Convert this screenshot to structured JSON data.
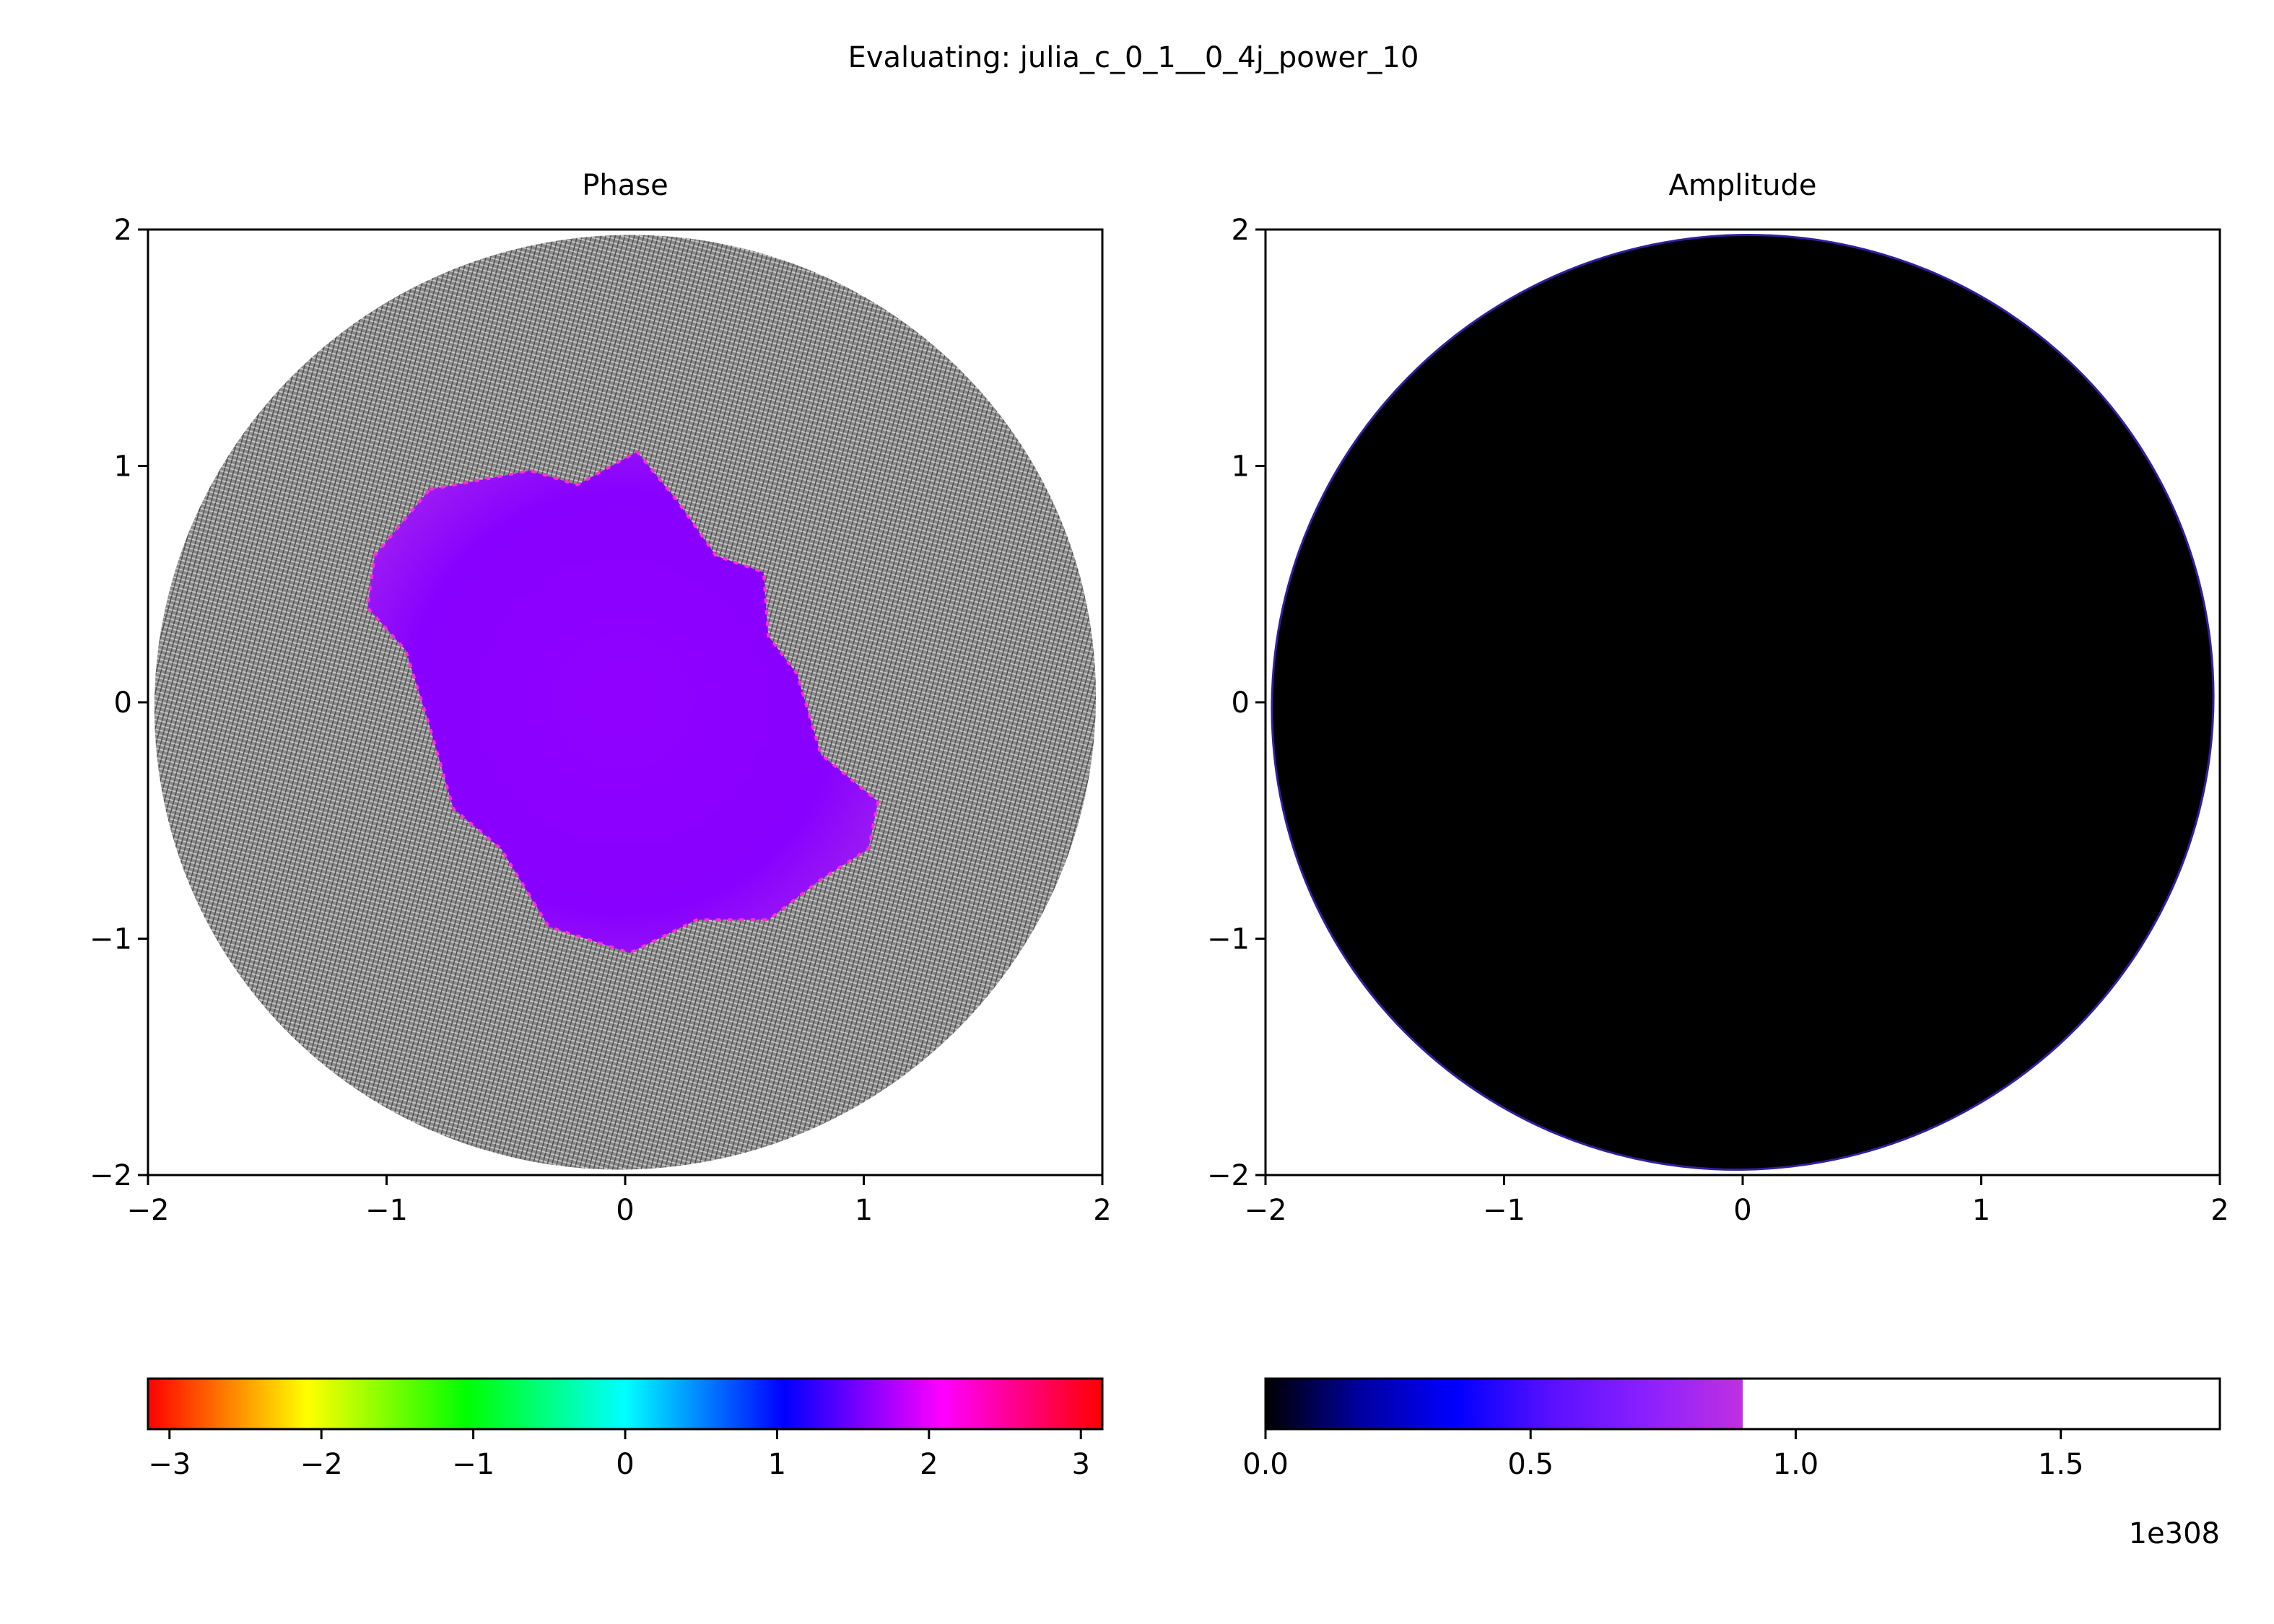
{
  "figure": {
    "suptitle": "Evaluating: julia_c_0_1__0_4j_power_10"
  },
  "colors": {
    "phase_gray": "#8a8a8a",
    "phase_interior": "#8c00ff",
    "phase_edge_pink": "#ff30d0",
    "amplitude_fill": "#000000",
    "amplitude_edge": "#3020a0"
  },
  "chart_data": [
    {
      "type": "heatmap",
      "title": "Phase",
      "xlabel": "",
      "ylabel": "",
      "xlim": [
        -2,
        2
      ],
      "ylim": [
        -2,
        2
      ],
      "xticks": [
        "−2",
        "−1",
        "0",
        "1",
        "2"
      ],
      "yticks": [
        "−2",
        "−1",
        "0",
        "1",
        "2"
      ],
      "xtick_values": [
        -2,
        -1,
        0,
        1,
        2
      ],
      "ytick_values": [
        -2,
        -1,
        0,
        1,
        2
      ],
      "colormap": "hsv",
      "colorbar": {
        "range": [
          -3.14159,
          3.14159
        ],
        "ticks": [
          "−3",
          "−2",
          "−1",
          "0",
          "1",
          "2",
          "3"
        ],
        "tick_values": [
          -3,
          -2,
          -1,
          0,
          1,
          2,
          3
        ],
        "stops": [
          "#ff0000",
          "#ffff00",
          "#00ff00",
          "#00ffff",
          "#0000ff",
          "#ff00ff",
          "#ff0000"
        ]
      },
      "escape_disc": {
        "semi_axis_x": 1.98,
        "semi_axis_y": 1.97,
        "tilt_deg": -30,
        "center": [
          0,
          0
        ]
      },
      "interior_polygon": [
        [
          -0.82,
          0.9
        ],
        [
          -0.4,
          0.98
        ],
        [
          -0.2,
          0.92
        ],
        [
          0.05,
          1.06
        ],
        [
          0.22,
          0.85
        ],
        [
          0.38,
          0.62
        ],
        [
          0.58,
          0.55
        ],
        [
          0.6,
          0.28
        ],
        [
          0.72,
          0.12
        ],
        [
          0.82,
          -0.22
        ],
        [
          1.06,
          -0.42
        ],
        [
          1.02,
          -0.62
        ],
        [
          0.82,
          -0.75
        ],
        [
          0.6,
          -0.92
        ],
        [
          0.3,
          -0.92
        ],
        [
          0.02,
          -1.06
        ],
        [
          -0.32,
          -0.95
        ],
        [
          -0.52,
          -0.62
        ],
        [
          -0.72,
          -0.45
        ],
        [
          -0.82,
          -0.1
        ],
        [
          -0.92,
          0.22
        ],
        [
          -1.08,
          0.4
        ],
        [
          -1.05,
          0.62
        ]
      ]
    },
    {
      "type": "heatmap",
      "title": "Amplitude",
      "xlabel": "",
      "ylabel": "",
      "xlim": [
        -2,
        2
      ],
      "ylim": [
        -2,
        2
      ],
      "xticks": [
        "−2",
        "−1",
        "0",
        "1",
        "2"
      ],
      "yticks": [
        "−2",
        "−1",
        "0",
        "1",
        "2"
      ],
      "xtick_values": [
        -2,
        -1,
        0,
        1,
        2
      ],
      "ytick_values": [
        -2,
        -1,
        0,
        1,
        2
      ],
      "colormap": "gnuplot2",
      "colorbar": {
        "range": [
          0,
          1.8
        ],
        "ticks": [
          "0.0",
          "0.5",
          "1.0",
          "1.5"
        ],
        "tick_values": [
          0,
          0.5,
          1.0,
          1.5
        ],
        "offset_text": "1e308",
        "filled_fraction": 0.5,
        "stops": [
          "#000000",
          "#0000a0",
          "#0000ff",
          "#5a10ff",
          "#8c20ff",
          "#c030e0"
        ]
      },
      "escape_disc": {
        "semi_axis_x": 1.98,
        "semi_axis_y": 1.97,
        "tilt_deg": -30,
        "center": [
          0,
          0
        ]
      }
    }
  ]
}
